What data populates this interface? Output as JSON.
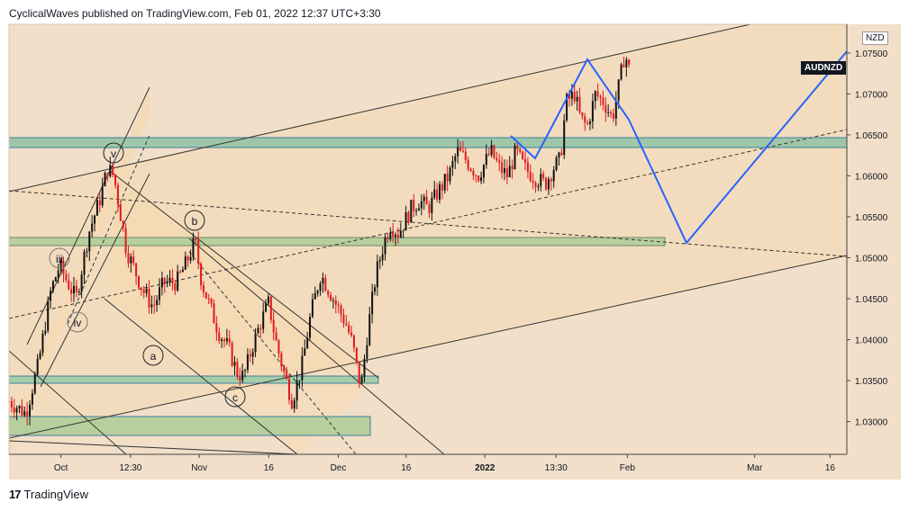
{
  "header": {
    "text": "CyclicalWaves published on TradingView.com, Feb 01, 2022 12:37 UTC+3:30"
  },
  "footer": {
    "logo": "17",
    "brand": "TradingView"
  },
  "symbol": {
    "badge": "AUDNZD",
    "currency": "NZD"
  },
  "chart_data": {
    "type": "candlestick",
    "title": "",
    "symbol": "AUDNZD",
    "currency": "NZD",
    "ylim": [
      1.026,
      1.0785
    ],
    "y_ticks": [
      1.03,
      1.035,
      1.04,
      1.045,
      1.05,
      1.055,
      1.06,
      1.065,
      1.07,
      1.075
    ],
    "y_tick_labels": [
      "1.03000",
      "1.03500",
      "1.04000",
      "1.04500",
      "1.05000",
      "1.05500",
      "1.06000",
      "1.06500",
      "1.07000",
      "1.07500"
    ],
    "x_ticks": [
      {
        "label": "Oct",
        "pos": 0.062
      },
      {
        "label": "12:30",
        "pos": 0.145
      },
      {
        "label": "Nov",
        "pos": 0.227
      },
      {
        "label": "16",
        "pos": 0.31
      },
      {
        "label": "Dec",
        "pos": 0.393
      },
      {
        "label": "16",
        "pos": 0.474
      },
      {
        "label": "2022",
        "pos": 0.568
      },
      {
        "label": "13:30",
        "pos": 0.653
      },
      {
        "label": "Feb",
        "pos": 0.738
      },
      {
        "label": "Mar",
        "pos": 0.89
      },
      {
        "label": "16",
        "pos": 0.98
      }
    ],
    "price_path": [
      [
        0.0,
        1.0325
      ],
      [
        0.02,
        1.031
      ],
      [
        0.035,
        1.037
      ],
      [
        0.05,
        1.046
      ],
      [
        0.06,
        1.049
      ],
      [
        0.07,
        1.047
      ],
      [
        0.08,
        1.045
      ],
      [
        0.095,
        1.053
      ],
      [
        0.108,
        1.057
      ],
      [
        0.118,
        1.061
      ],
      [
        0.125,
        1.06
      ],
      [
        0.132,
        1.056
      ],
      [
        0.14,
        1.051
      ],
      [
        0.148,
        1.049
      ],
      [
        0.16,
        1.046
      ],
      [
        0.172,
        1.044
      ],
      [
        0.185,
        1.047
      ],
      [
        0.2,
        1.047
      ],
      [
        0.21,
        1.049
      ],
      [
        0.222,
        1.052
      ],
      [
        0.23,
        1.047
      ],
      [
        0.24,
        1.044
      ],
      [
        0.25,
        1.041
      ],
      [
        0.262,
        1.039
      ],
      [
        0.272,
        1.036
      ],
      [
        0.28,
        1.0355
      ],
      [
        0.29,
        1.039
      ],
      [
        0.3,
        1.042
      ],
      [
        0.31,
        1.0445
      ],
      [
        0.318,
        1.04
      ],
      [
        0.328,
        1.036
      ],
      [
        0.338,
        1.0325
      ],
      [
        0.35,
        1.037
      ],
      [
        0.36,
        1.043
      ],
      [
        0.372,
        1.048
      ],
      [
        0.382,
        1.046
      ],
      [
        0.392,
        1.044
      ],
      [
        0.402,
        1.042
      ],
      [
        0.41,
        1.0395
      ],
      [
        0.42,
        1.034
      ],
      [
        0.428,
        1.041
      ],
      [
        0.438,
        1.048
      ],
      [
        0.448,
        1.052
      ],
      [
        0.455,
        1.054
      ],
      [
        0.465,
        1.053
      ],
      [
        0.48,
        1.056
      ],
      [
        0.49,
        1.057
      ],
      [
        0.5,
        1.056
      ],
      [
        0.512,
        1.058
      ],
      [
        0.525,
        1.06
      ],
      [
        0.535,
        1.063
      ],
      [
        0.545,
        1.062
      ],
      [
        0.56,
        1.06
      ],
      [
        0.575,
        1.063
      ],
      [
        0.585,
        1.061
      ],
      [
        0.595,
        1.06
      ],
      [
        0.605,
        1.063
      ],
      [
        0.615,
        1.061
      ],
      [
        0.625,
        1.06
      ],
      [
        0.64,
        1.059
      ],
      [
        0.65,
        1.061
      ],
      [
        0.658,
        1.062
      ],
      [
        0.665,
        1.069
      ],
      [
        0.675,
        1.07
      ],
      [
        0.682,
        1.067
      ],
      [
        0.69,
        1.066
      ],
      [
        0.7,
        1.07
      ],
      [
        0.71,
        1.069
      ],
      [
        0.72,
        1.067
      ],
      [
        0.728,
        1.071
      ],
      [
        0.735,
        1.075
      ],
      [
        0.74,
        1.073
      ]
    ],
    "annotations": [
      "v",
      "iii",
      "iv",
      "a",
      "b",
      "c"
    ]
  }
}
